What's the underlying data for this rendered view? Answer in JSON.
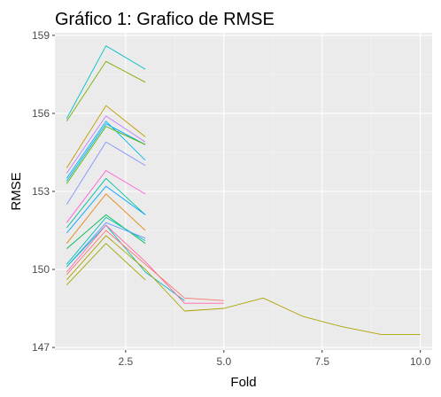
{
  "chart_data": {
    "type": "line",
    "title": "Gráfico 1: Grafico de RMSE",
    "xlabel": "Fold",
    "ylabel": "RMSE",
    "xlim": [
      0.7,
      10.3
    ],
    "ylim": [
      146.9,
      159.1
    ],
    "x_ticks": [
      2.5,
      5.0,
      7.5,
      10.0
    ],
    "x_tick_labels": [
      "2.5",
      "5.0",
      "7.5",
      "10.0"
    ],
    "y_ticks": [
      147,
      150,
      153,
      156,
      159
    ],
    "y_tick_labels": [
      "147",
      "150",
      "153",
      "156",
      "159"
    ],
    "grid": true,
    "legend": "none",
    "colors": {
      "panel_background": "#ebebeb",
      "grid_major": "#ffffff",
      "grid_minor": "#f5f5f5",
      "tick_text": "#4d4d4d"
    },
    "series": [
      {
        "color": "#00bfc4",
        "x": [
          1,
          2,
          3
        ],
        "y": [
          155.8,
          158.6,
          157.7
        ]
      },
      {
        "color": "#7cae00",
        "x": [
          1,
          2,
          3
        ],
        "y": [
          155.7,
          158.0,
          157.2
        ]
      },
      {
        "color": "#c49a00",
        "x": [
          1,
          2,
          3
        ],
        "y": [
          153.9,
          156.3,
          155.1
        ]
      },
      {
        "color": "#c77cff",
        "x": [
          1,
          2,
          3
        ],
        "y": [
          153.7,
          155.9,
          154.9
        ]
      },
      {
        "color": "#00b8e7",
        "x": [
          1,
          2,
          3
        ],
        "y": [
          153.5,
          155.7,
          154.2
        ]
      },
      {
        "color": "#00a9ff",
        "x": [
          1,
          2,
          3
        ],
        "y": [
          153.4,
          155.6,
          154.8
        ]
      },
      {
        "color": "#53b400",
        "x": [
          1,
          2,
          3
        ],
        "y": [
          153.3,
          155.5,
          154.8
        ]
      },
      {
        "color": "#8494ff",
        "x": [
          1,
          2,
          3
        ],
        "y": [
          152.5,
          154.9,
          154.0
        ]
      },
      {
        "color": "#fb61d7",
        "x": [
          1,
          2,
          3
        ],
        "y": [
          151.8,
          153.8,
          152.9
        ]
      },
      {
        "color": "#00c094",
        "x": [
          1,
          2,
          3
        ],
        "y": [
          151.6,
          153.5,
          152.1
        ]
      },
      {
        "color": "#00a5ff",
        "x": [
          1,
          2,
          3
        ],
        "y": [
          151.4,
          153.2,
          152.1
        ]
      },
      {
        "color": "#e68613",
        "x": [
          1,
          2,
          3
        ],
        "y": [
          151.0,
          152.9,
          151.5
        ]
      },
      {
        "color": "#00bc56",
        "x": [
          1,
          2,
          3
        ],
        "y": [
          150.8,
          152.1,
          151.0
        ]
      },
      {
        "color": "#00c0b8",
        "x": [
          1,
          2,
          3
        ],
        "y": [
          150.2,
          152.0,
          151.1
        ]
      },
      {
        "color": "#619cff",
        "x": [
          1,
          2,
          3
        ],
        "y": [
          150.1,
          151.8,
          151.2
        ]
      },
      {
        "color": "#00bfc4",
        "x": [
          1,
          2,
          3,
          4
        ],
        "y": [
          150.1,
          151.7,
          149.9,
          148.8
        ]
      },
      {
        "color": "#ff66a8",
        "x": [
          1,
          2,
          3,
          4,
          5
        ],
        "y": [
          149.9,
          151.7,
          150.3,
          148.7,
          148.7
        ]
      },
      {
        "color": "#f8766d",
        "x": [
          1,
          2,
          3,
          4,
          5
        ],
        "y": [
          149.8,
          151.5,
          150.2,
          148.9,
          148.8
        ]
      },
      {
        "color": "#aba300",
        "x": [
          1,
          2,
          3,
          4,
          5,
          6,
          7,
          8,
          9,
          10
        ],
        "y": [
          149.6,
          151.3,
          150.0,
          148.4,
          148.5,
          148.9,
          148.2,
          147.8,
          147.5,
          147.5
        ]
      },
      {
        "color": "#a3a500",
        "x": [
          1,
          2,
          3
        ],
        "y": [
          149.4,
          151.0,
          149.6
        ]
      }
    ]
  }
}
